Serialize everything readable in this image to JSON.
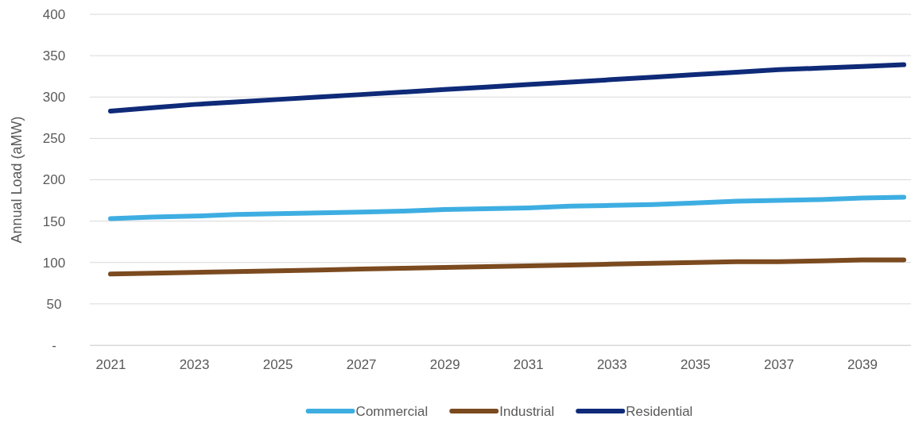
{
  "chart_data": {
    "type": "line",
    "ylabel": "Annual Load (aMW)",
    "categories": [
      "2021",
      null,
      "2023",
      null,
      "2025",
      null,
      "2027",
      null,
      "2029",
      null,
      "2031",
      null,
      "2033",
      null,
      "2035",
      null,
      "2037",
      null,
      "2039",
      null
    ],
    "series": [
      {
        "name": "Commercial",
        "color": "#3eaee2",
        "values": [
          153,
          155,
          156,
          158,
          159,
          160,
          161,
          162,
          164,
          165,
          166,
          168,
          169,
          170,
          172,
          174,
          175,
          176,
          178,
          179
        ]
      },
      {
        "name": "Industrial",
        "color": "#7b4a1f",
        "values": [
          86,
          87,
          88,
          89,
          90,
          91,
          92,
          93,
          94,
          95,
          96,
          97,
          98,
          99,
          100,
          101,
          101,
          102,
          103,
          103
        ]
      },
      {
        "name": "Residential",
        "color": "#0e2a78",
        "values": [
          283,
          287,
          291,
          294,
          297,
          300,
          303,
          306,
          309,
          312,
          315,
          318,
          321,
          324,
          327,
          330,
          333,
          335,
          337,
          339
        ]
      }
    ],
    "ylim": [
      0,
      400
    ],
    "yticks": [
      {
        "value": 0,
        "label": "-"
      },
      50,
      100,
      150,
      200,
      250,
      300,
      350,
      400
    ],
    "grid": "y",
    "legend": "bottom"
  }
}
